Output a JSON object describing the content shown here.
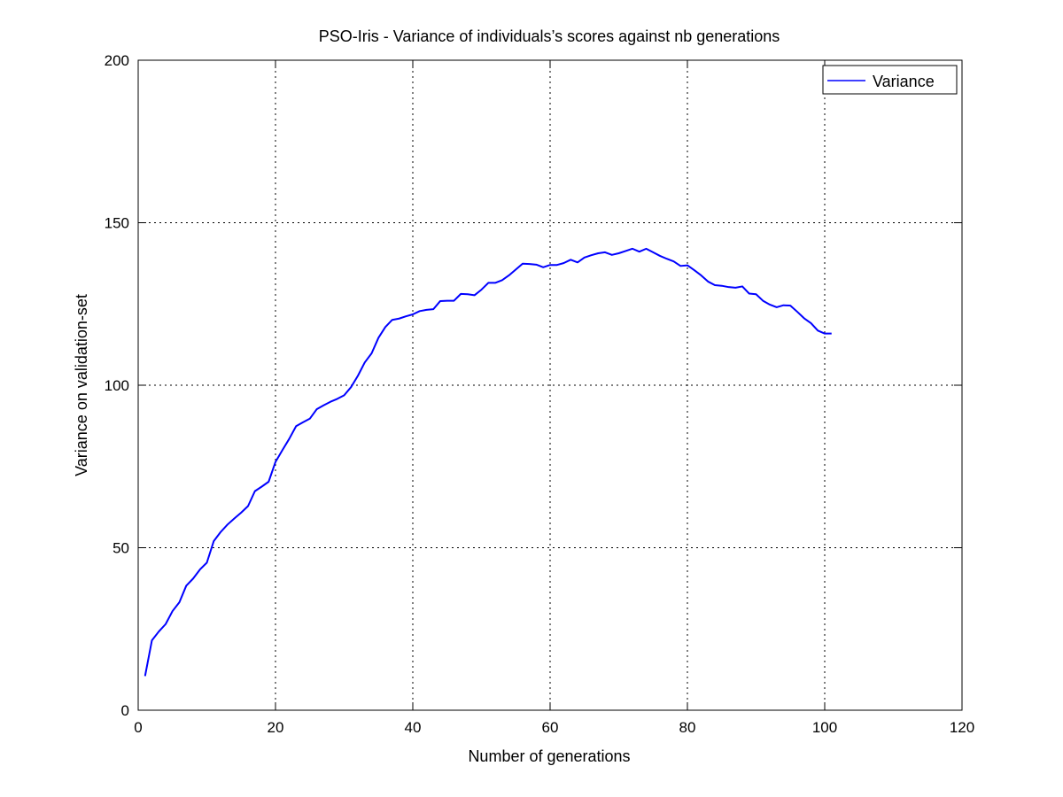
{
  "chart_data": {
    "type": "line",
    "title": "PSO-Iris - Variance of individuals’s scores against nb generations",
    "xlabel": "Number of generations",
    "ylabel": "Variance on validation-set",
    "xlim": [
      0,
      120
    ],
    "ylim": [
      0,
      200
    ],
    "xticks": [
      0,
      20,
      40,
      60,
      80,
      100,
      120
    ],
    "yticks": [
      0,
      50,
      100,
      150,
      200
    ],
    "grid": true,
    "grid_style": "dotted",
    "legend_position": "top-right",
    "series": [
      {
        "name": "Variance",
        "color": "#0000ff",
        "x": [
          1,
          2,
          3,
          4,
          5,
          6,
          7,
          8,
          9,
          10,
          11,
          12,
          13,
          14,
          15,
          16,
          17,
          18,
          19,
          20,
          21,
          22,
          23,
          24,
          25,
          26,
          27,
          28,
          29,
          30,
          31,
          32,
          33,
          34,
          35,
          36,
          37,
          38,
          39,
          40,
          41,
          42,
          43,
          44,
          45,
          46,
          47,
          48,
          49,
          50,
          51,
          52,
          53,
          54,
          55,
          56,
          57,
          58,
          59,
          60,
          61,
          62,
          63,
          64,
          65,
          66,
          67,
          68,
          69,
          70,
          71,
          72,
          73,
          74,
          75,
          76,
          77,
          78,
          79,
          80,
          81,
          82,
          83,
          84,
          85,
          86,
          87,
          88,
          89,
          90,
          91,
          92,
          93,
          94,
          95,
          96,
          97,
          98,
          99,
          100,
          101
        ],
        "values": [
          10.5,
          21.5,
          24.2,
          26.5,
          30.5,
          33.2,
          38.3,
          40.5,
          43.3,
          45.4,
          52.0,
          54.8,
          57.1,
          59.0,
          60.8,
          62.8,
          67.4,
          68.8,
          70.3,
          76.4,
          80.0,
          83.5,
          87.4,
          88.6,
          89.7,
          92.6,
          93.8,
          94.9,
          95.8,
          96.9,
          99.4,
          102.9,
          107.0,
          109.8,
          114.6,
          117.9,
          120.1,
          120.5,
          121.2,
          121.8,
          122.8,
          123.2,
          123.4,
          125.9,
          126.0,
          126.0,
          128.1,
          128.0,
          127.7,
          129.4,
          131.5,
          131.5,
          132.3,
          133.8,
          135.6,
          137.4,
          137.3,
          137.1,
          136.3,
          137.0,
          137.0,
          137.6,
          138.6,
          137.8,
          139.3,
          140.0,
          140.6,
          140.9,
          140.1,
          140.6,
          141.3,
          142.0,
          141.1,
          142.0,
          140.9,
          139.8,
          138.9,
          138.1,
          136.7,
          136.9,
          135.4,
          133.8,
          131.9,
          130.8,
          130.6,
          130.2,
          130.0,
          130.4,
          128.2,
          128.0,
          126.0,
          124.8,
          124.0,
          124.6,
          124.5,
          122.6,
          120.6,
          119.1,
          116.8,
          115.9,
          115.9
        ]
      }
    ]
  }
}
